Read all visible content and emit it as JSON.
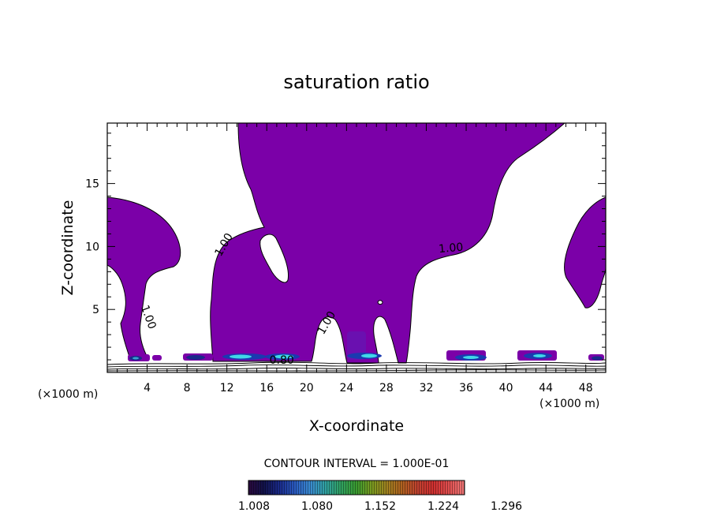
{
  "chart_data": {
    "type": "contour",
    "title": "saturation ratio",
    "xlabel": "X-coordinate",
    "ylabel": "Z-coordinate",
    "x_unit_left": "(×1000 m)",
    "x_unit_right": "(×1000 m)",
    "xlim": [
      0,
      50
    ],
    "ylim": [
      0,
      19.8
    ],
    "x_ticks": [
      4,
      8,
      12,
      16,
      20,
      24,
      28,
      32,
      36,
      40,
      44,
      48
    ],
    "y_ticks": [
      5,
      10,
      15
    ],
    "fill_color": "#7b00a8",
    "contour_labels": [
      {
        "text": "1.00",
        "x": 12.0,
        "y": 10.0
      },
      {
        "text": "1.00",
        "x": 3.8,
        "y": 4.3
      },
      {
        "text": "1.00",
        "x": 22.3,
        "y": 3.8
      },
      {
        "text": "1.00",
        "x": 34.5,
        "y": 9.6
      },
      {
        "text": "0.80",
        "x": 17.5,
        "y": 0.7
      }
    ],
    "contour_interval_text": "CONTOUR INTERVAL = 1.000E-01",
    "colorbar": {
      "tick_labels": [
        "1.008",
        "1.080",
        "1.152",
        "1.224",
        "1.296"
      ],
      "colors": [
        "#2a0a3e",
        "#12124a",
        "#1a2a8a",
        "#2a5ac0",
        "#3a8ad0",
        "#30a0a0",
        "#30a060",
        "#3a9a30",
        "#7a9a20",
        "#a08020",
        "#b06020",
        "#c04030",
        "#d03030",
        "#e05050",
        "#f07878"
      ]
    }
  }
}
